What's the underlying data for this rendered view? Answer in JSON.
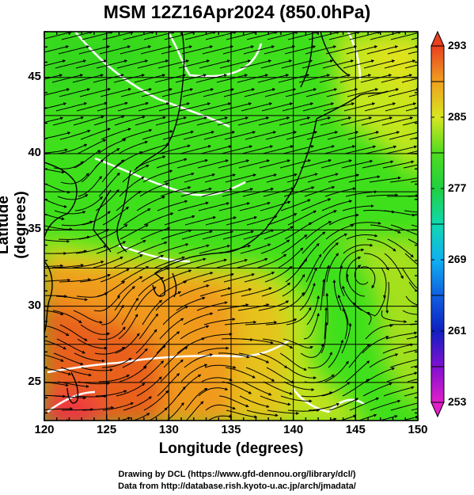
{
  "title": "MSM 12Z16Apr2024 (850.0hPa)",
  "x_axis": {
    "label": "Longitude (degrees)",
    "min": 120,
    "max": 150,
    "ticks": [
      "120",
      "125",
      "130",
      "135",
      "140",
      "145",
      "150"
    ]
  },
  "y_axis": {
    "label": "Latitude  (degrees)",
    "min": 22.5,
    "max": 48,
    "ticks": [
      "25",
      "30",
      "35",
      "40",
      "45"
    ]
  },
  "colorbar": {
    "min": 253,
    "max": 293,
    "labels": [
      "293",
      "285",
      "277",
      "269",
      "261",
      "253"
    ]
  },
  "credits": {
    "line1": "Drawing by DCL (https://www.gfd-dennou.org/library/dcl/)",
    "line2": "Data from http://database.rish.kyoto-u.ac.jp/arch/jmadata/"
  },
  "colors": {
    "cold_green": "#3ee01c",
    "yellow_green": "#b4e61a",
    "yellow": "#e6e61e",
    "orange": "#f09a1e",
    "red": "#e85a1e",
    "contour": "#ffffff",
    "streamline": "#000000"
  }
}
